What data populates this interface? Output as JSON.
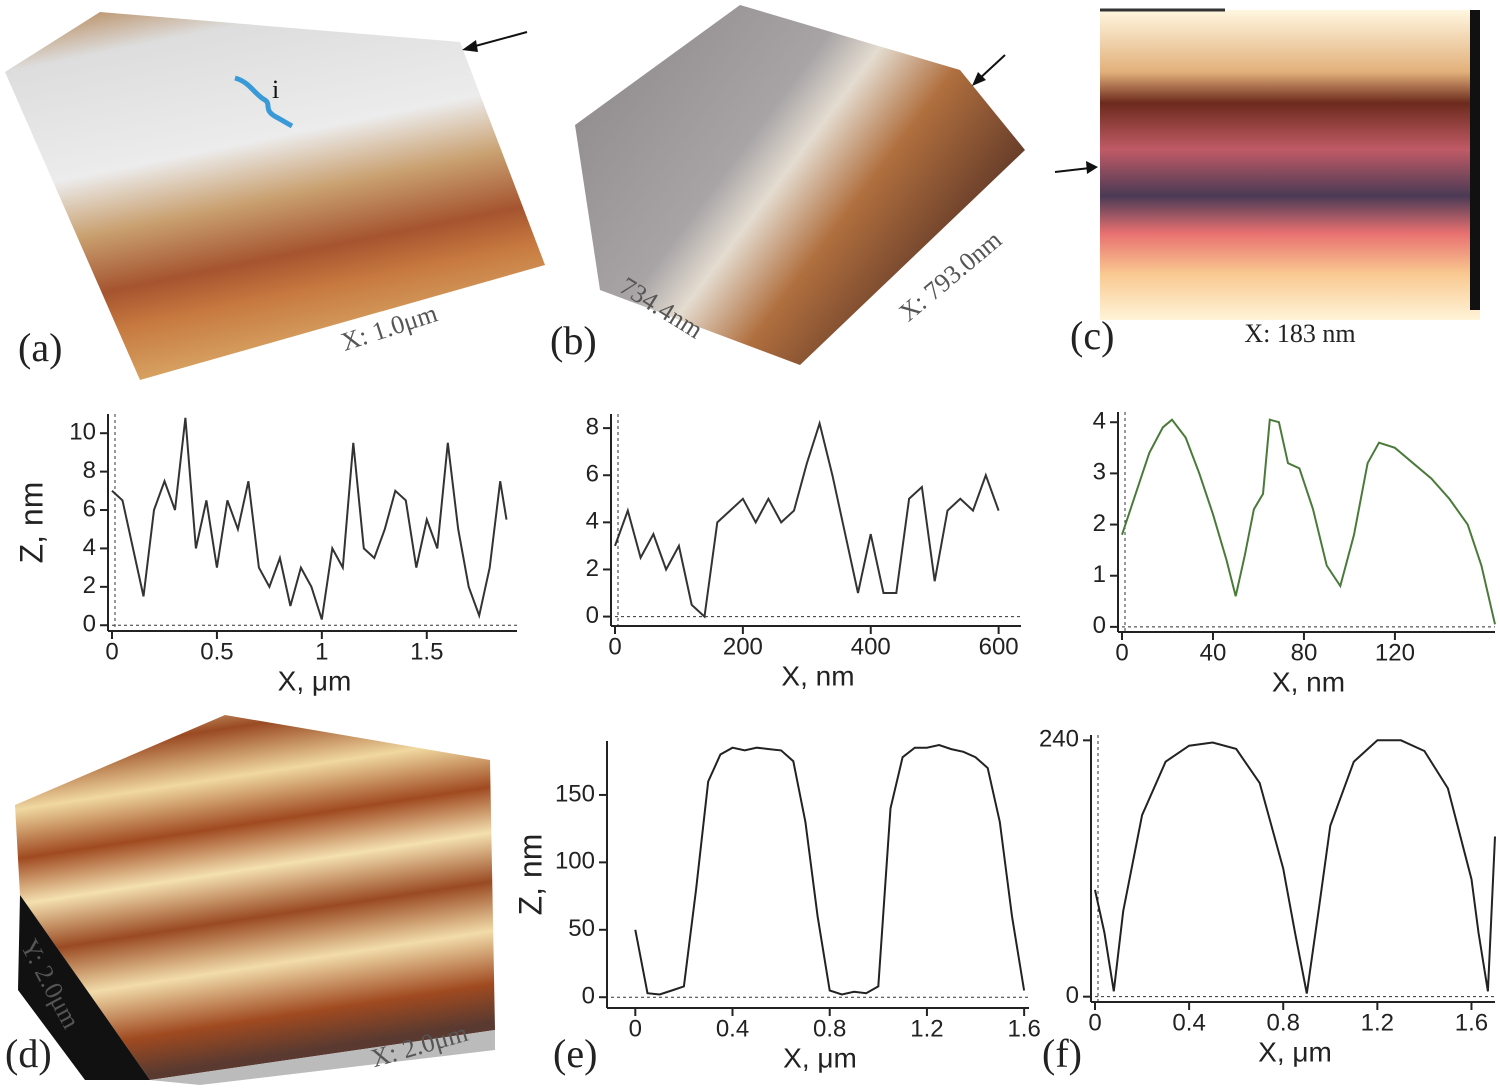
{
  "panel_labels": [
    "(a)",
    "(b)",
    "(c)",
    "(d)",
    "(e)",
    "(f)"
  ],
  "image_annotations": {
    "a_scale": "X: 1.0μm",
    "a_marker": "i",
    "b_scale_y": "734.4nm",
    "b_scale_x": "X: 793.0nm",
    "c_scale": "X: 183 nm",
    "d_scale_y": "Y: 2.0μm",
    "d_scale_x": "X: 2.0μm"
  },
  "chart_data": [
    {
      "type": "line",
      "xlabel": "X, μm",
      "ylabel": "Z, nm",
      "color": "#333333",
      "x": [
        0,
        0.05,
        0.1,
        0.15,
        0.2,
        0.25,
        0.3,
        0.35,
        0.4,
        0.45,
        0.5,
        0.55,
        0.6,
        0.65,
        0.7,
        0.75,
        0.8,
        0.85,
        0.9,
        0.95,
        1.0,
        1.05,
        1.1,
        1.15,
        1.2,
        1.25,
        1.3,
        1.35,
        1.4,
        1.45,
        1.5,
        1.55,
        1.6,
        1.65,
        1.7,
        1.75,
        1.8,
        1.85,
        1.88
      ],
      "values": [
        7,
        6.5,
        4,
        1.5,
        6,
        7.5,
        6,
        10.8,
        4,
        6.5,
        3,
        6.5,
        5,
        7.5,
        3,
        2,
        3.5,
        1,
        3,
        2,
        0.3,
        4,
        3,
        9.5,
        4,
        3.5,
        5,
        7,
        6.5,
        3,
        5.5,
        4,
        9.5,
        5,
        2,
        0.5,
        3,
        7.5,
        5.5
      ],
      "xlim": [
        0,
        1.93
      ],
      "ylim": [
        -0.3,
        11
      ],
      "xticks": [
        0,
        0.5,
        1,
        1.5
      ],
      "yticks": [
        0,
        2,
        4,
        6,
        8,
        10
      ]
    },
    {
      "type": "line",
      "xlabel": "X, nm",
      "color": "#333333",
      "x": [
        0,
        20,
        40,
        60,
        80,
        100,
        120,
        140,
        160,
        180,
        200,
        220,
        240,
        260,
        280,
        300,
        320,
        340,
        360,
        380,
        400,
        420,
        440,
        460,
        480,
        500,
        520,
        540,
        560,
        580,
        600
      ],
      "values": [
        3,
        4.5,
        2.5,
        3.5,
        2,
        3,
        0.5,
        0,
        4,
        4.5,
        5,
        4,
        5,
        4,
        4.5,
        6.5,
        8.2,
        6,
        3.5,
        1,
        3.5,
        1,
        1,
        5,
        5.5,
        1.5,
        4.5,
        5,
        4.5,
        6,
        4.5
      ],
      "xlim": [
        0,
        635
      ],
      "ylim": [
        -0.4,
        8.6
      ],
      "xticks": [
        0,
        200,
        400,
        600
      ],
      "yticks": [
        0,
        2,
        4,
        6,
        8
      ]
    },
    {
      "type": "line",
      "xlabel": "X, nm",
      "color": "#4a7a3a",
      "x": [
        0,
        6,
        12,
        18,
        22,
        28,
        34,
        40,
        46,
        50,
        54,
        58,
        62,
        65,
        69,
        73,
        78,
        84,
        90,
        96,
        102,
        108,
        113,
        120,
        128,
        136,
        144,
        152,
        158,
        164
      ],
      "values": [
        1.8,
        2.6,
        3.4,
        3.9,
        4.05,
        3.7,
        3.0,
        2.2,
        1.3,
        0.6,
        1.4,
        2.3,
        2.6,
        4.05,
        4.0,
        3.2,
        3.1,
        2.3,
        1.2,
        0.8,
        1.8,
        3.2,
        3.6,
        3.5,
        3.2,
        2.9,
        2.5,
        2.0,
        1.2,
        0.05
      ],
      "xlim": [
        0,
        164
      ],
      "ylim": [
        -0.1,
        4.2
      ],
      "xticks": [
        0,
        40,
        80,
        120
      ],
      "yticks": [
        0,
        1,
        2,
        3,
        4
      ]
    },
    {
      "type": "line",
      "xlabel": "X, μm",
      "ylabel": "Z, nm",
      "color": "#222222",
      "x": [
        0,
        0.05,
        0.1,
        0.15,
        0.2,
        0.25,
        0.3,
        0.35,
        0.4,
        0.45,
        0.5,
        0.55,
        0.6,
        0.65,
        0.7,
        0.75,
        0.8,
        0.85,
        0.9,
        0.95,
        1.0,
        1.05,
        1.1,
        1.15,
        1.2,
        1.25,
        1.3,
        1.35,
        1.4,
        1.45,
        1.5,
        1.55,
        1.6
      ],
      "values": [
        50,
        3,
        2,
        5,
        8,
        80,
        160,
        180,
        185,
        183,
        185,
        184,
        183,
        175,
        130,
        60,
        5,
        2,
        4,
        3,
        8,
        140,
        178,
        185,
        185,
        187,
        184,
        182,
        178,
        170,
        130,
        60,
        5
      ],
      "xlim": [
        -0.1,
        1.62
      ],
      "ylim": [
        -8,
        190
      ],
      "xticks": [
        0,
        0.4,
        0.8,
        1.2,
        1.6
      ],
      "yticks": [
        0,
        50,
        100,
        150
      ]
    },
    {
      "type": "line",
      "xlabel": "X, μm",
      "color": "#222222",
      "x": [
        0,
        0.04,
        0.08,
        0.12,
        0.2,
        0.3,
        0.4,
        0.5,
        0.6,
        0.7,
        0.8,
        0.85,
        0.9,
        0.95,
        1.0,
        1.1,
        1.2,
        1.3,
        1.4,
        1.5,
        1.6,
        1.63,
        1.67,
        1.7
      ],
      "values": [
        100,
        60,
        5,
        80,
        170,
        220,
        235,
        238,
        232,
        200,
        120,
        60,
        3,
        80,
        160,
        220,
        240,
        240,
        230,
        195,
        110,
        60,
        5,
        150
      ],
      "xlim": [
        0,
        1.7
      ],
      "ylim": [
        -5,
        245
      ],
      "xticks": [
        0,
        0.4,
        0.8,
        1.2,
        1.6
      ],
      "yticks": [
        0,
        240
      ]
    }
  ]
}
